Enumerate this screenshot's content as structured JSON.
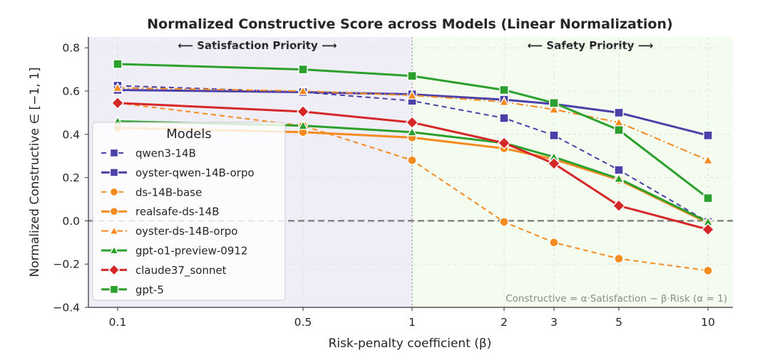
{
  "chart_data": {
    "type": "line",
    "title": "Normalized Constructive Score across Models (Linear Normalization)",
    "xlabel": "Risk-penalty coefficient (β)",
    "ylabel": "Normalized Constructive  ∈ [−1, 1]",
    "x": [
      0.1,
      0.5,
      1,
      2,
      3,
      5,
      10
    ],
    "x_tick_labels": [
      "0.1",
      "0.5",
      "1",
      "2",
      "3",
      "5",
      "10"
    ],
    "x_scale": "categorical",
    "ylim": [
      -0.4,
      0.85
    ],
    "y_ticks": [
      0.8,
      0.6,
      0.4,
      0.2,
      0.0,
      -0.2,
      -0.4
    ],
    "y_tick_labels": [
      "0.8",
      "0.6",
      "0.4",
      "0.2",
      "0.0",
      "−0.2",
      "−0.4"
    ],
    "grid": true,
    "legend_title": "Models",
    "legend_placement": "center-left",
    "regions": [
      {
        "label": "⟵ Satisfaction Priority ⟶",
        "x_from": 0.1,
        "x_to": 1,
        "color": "#efeef7"
      },
      {
        "label": "⟵ Safety Priority ⟶",
        "x_from": 1,
        "x_to": 10,
        "color": "#f4fbef"
      }
    ],
    "annotation": "Constructive = α·Satisfaction − β·Risk (α = 1)",
    "series": [
      {
        "name": "qwen3-14B",
        "color": "#4b3fa8",
        "dash": "dashed",
        "marker": "square",
        "values": [
          0.625,
          0.595,
          0.555,
          0.475,
          0.395,
          0.235,
          -0.005
        ]
      },
      {
        "name": "oyster-qwen-14B-orpo",
        "color": "#4b3fa8",
        "dash": "solid",
        "marker": "square",
        "values": [
          0.605,
          0.595,
          0.585,
          0.56,
          0.54,
          0.5,
          0.395
        ]
      },
      {
        "name": "ds-14B-base",
        "color": "#f58a1f",
        "dash": "dashed",
        "marker": "circle",
        "values": [
          0.545,
          0.44,
          0.28,
          -0.005,
          -0.1,
          -0.175,
          -0.23
        ]
      },
      {
        "name": "realsafe-ds-14B",
        "color": "#f58a1f",
        "dash": "solid",
        "marker": "circle",
        "values": [
          0.43,
          0.41,
          0.385,
          0.335,
          0.285,
          0.19,
          -0.01
        ]
      },
      {
        "name": "oyster-ds-14B-orpo",
        "color": "#f58a1f",
        "dash": "dashdot",
        "marker": "triangle",
        "values": [
          0.615,
          0.6,
          0.58,
          0.55,
          0.515,
          0.455,
          0.28
        ]
      },
      {
        "name": "gpt-o1-preview-0912",
        "color": "#2ca02c",
        "dash": "solid",
        "marker": "triangle",
        "values": [
          0.46,
          0.44,
          0.41,
          0.36,
          0.295,
          0.195,
          -0.005
        ]
      },
      {
        "name": "claude37_sonnet",
        "color": "#d62728",
        "dash": "solid",
        "marker": "diamond",
        "values": [
          0.545,
          0.505,
          0.455,
          0.36,
          0.265,
          0.07,
          -0.04
        ]
      },
      {
        "name": "gpt-5",
        "color": "#2ca02c",
        "dash": "solid",
        "marker": "square",
        "values": [
          0.725,
          0.7,
          0.67,
          0.605,
          0.545,
          0.42,
          0.105
        ]
      }
    ]
  }
}
